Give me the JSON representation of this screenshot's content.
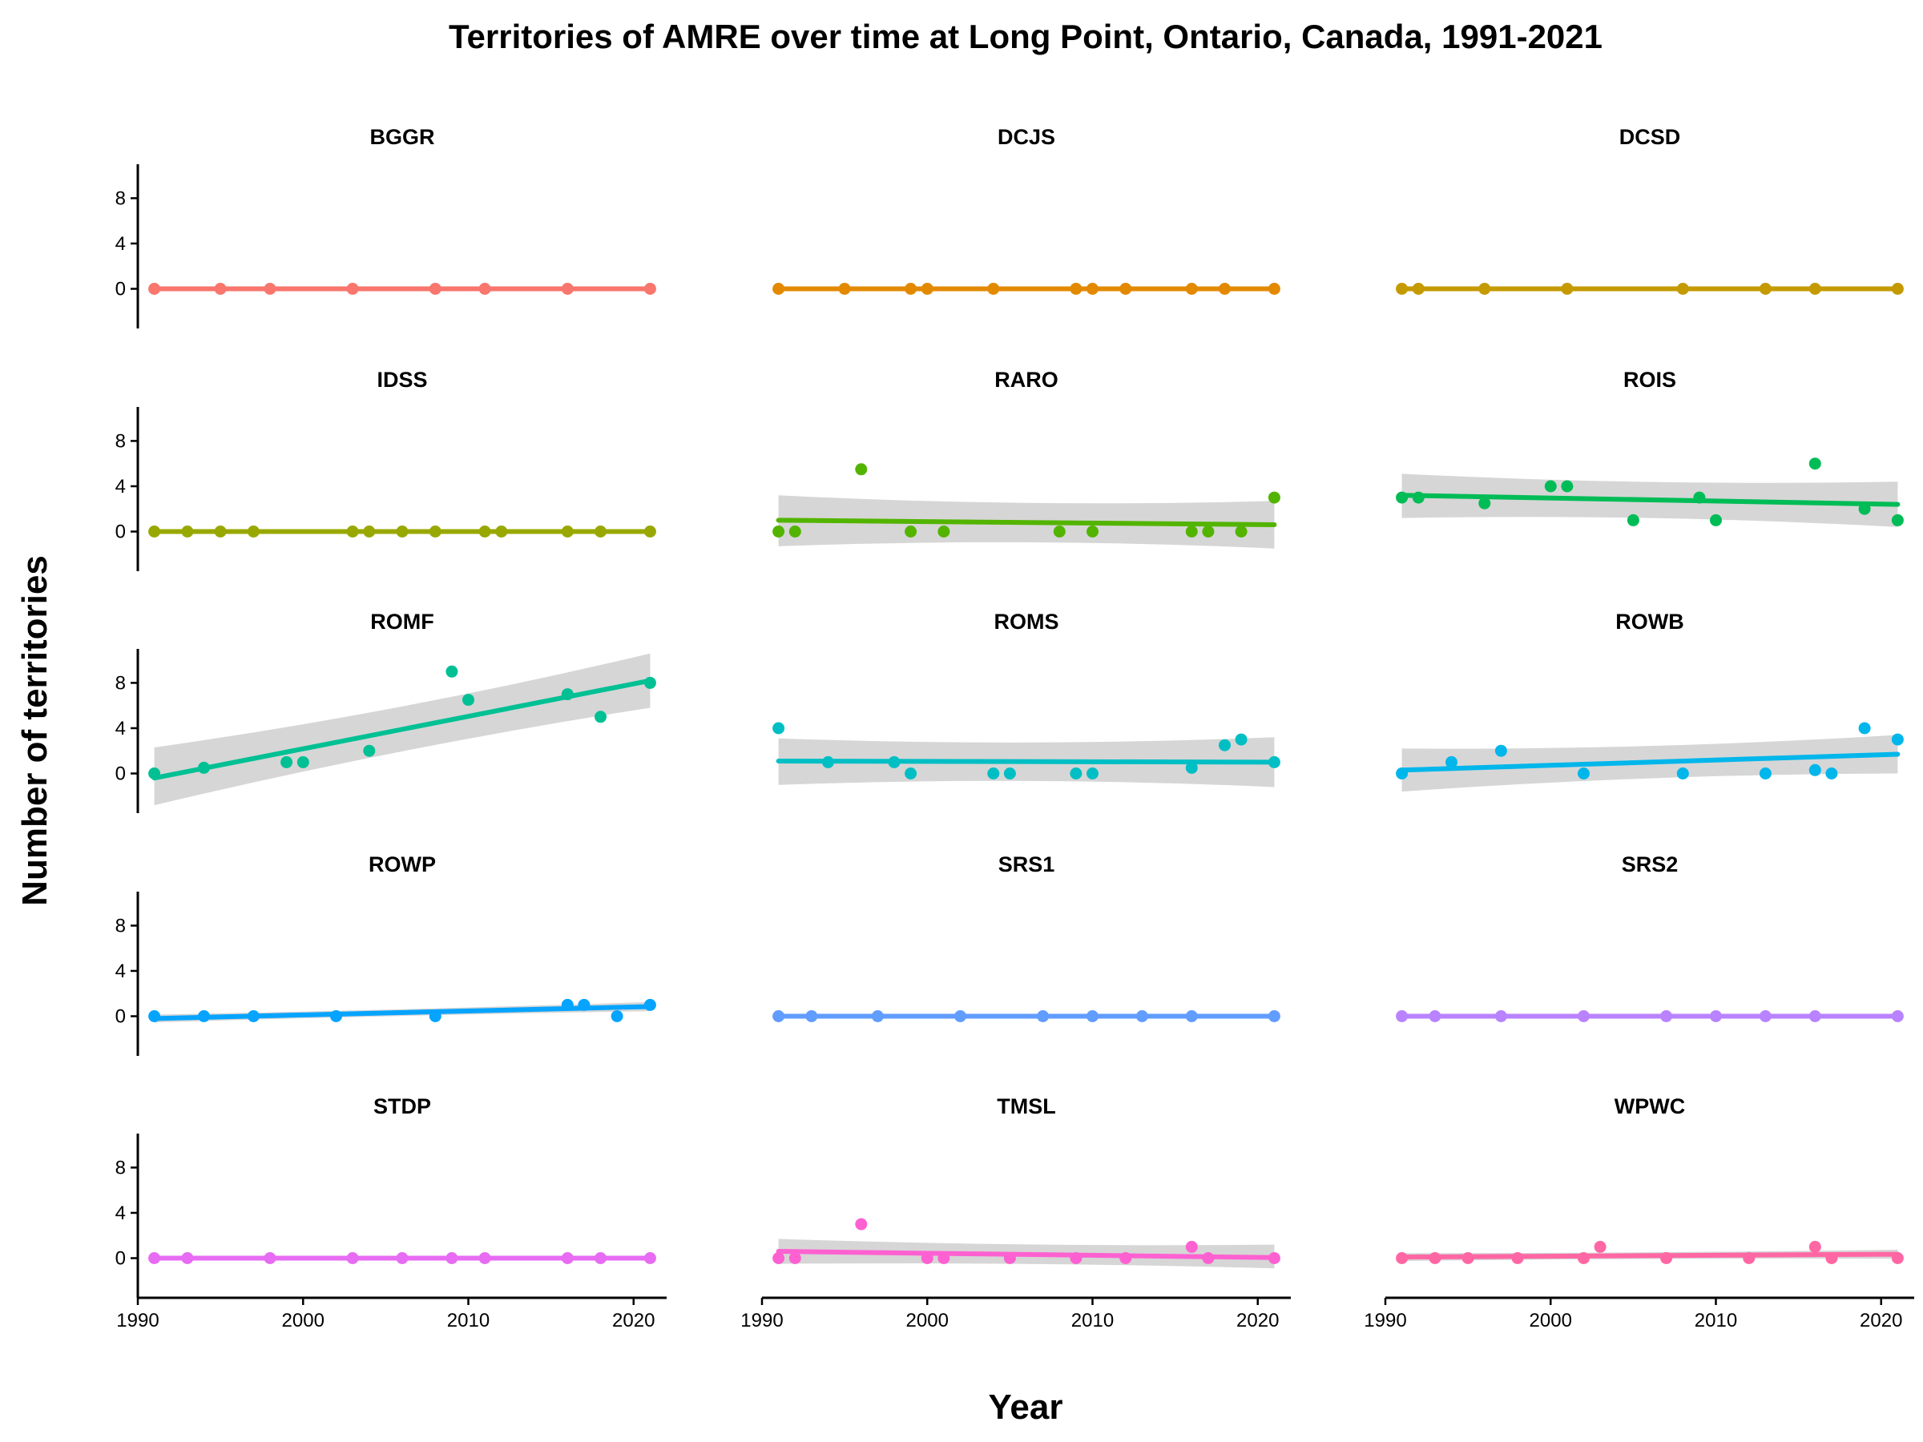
{
  "chart_data": {
    "type": "scatter",
    "title": "Territories of AMRE over time at Long Point, Ontario, Canada, 1991-2021",
    "xlabel": "Year",
    "ylabel": "Number of territories",
    "xlim": [
      1990,
      2022
    ],
    "ylim": [
      -3.5,
      11
    ],
    "x_ticks": [
      1990,
      2000,
      2010,
      2020
    ],
    "y_ticks": [
      0,
      4,
      8
    ],
    "grid": false,
    "legend": "none",
    "smoothing": "linear fit with 95% confidence band",
    "panels": [
      {
        "name": "BGGR",
        "color": "#F8766D",
        "x": [
          1991,
          1995,
          1998,
          2003,
          2008,
          2011,
          2016,
          2021
        ],
        "y": [
          0,
          0,
          0,
          0,
          0,
          0,
          0,
          0
        ],
        "fit": [
          0,
          0
        ],
        "band": [
          [
            0,
            0
          ],
          [
            0,
            0
          ]
        ]
      },
      {
        "name": "DCJS",
        "color": "#E38900",
        "x": [
          1991,
          1995,
          1999,
          2000,
          2004,
          2009,
          2010,
          2012,
          2016,
          2018,
          2021
        ],
        "y": [
          0,
          0,
          0,
          0,
          0,
          0,
          0,
          0,
          0,
          0,
          0
        ],
        "fit": [
          0,
          0
        ],
        "band": [
          [
            0,
            0
          ],
          [
            0,
            0
          ]
        ]
      },
      {
        "name": "DCSD",
        "color": "#C49A00",
        "x": [
          1991,
          1992,
          1996,
          2001,
          2008,
          2013,
          2016,
          2021
        ],
        "y": [
          0,
          0,
          0,
          0,
          0,
          0,
          0,
          0
        ],
        "fit": [
          0,
          0
        ],
        "band": [
          [
            0,
            0
          ],
          [
            0,
            0
          ]
        ]
      },
      {
        "name": "IDSS",
        "color": "#99A800",
        "x": [
          1991,
          1993,
          1995,
          1997,
          2003,
          2004,
          2006,
          2008,
          2011,
          2012,
          2016,
          2018,
          2021
        ],
        "y": [
          0,
          0,
          0,
          0,
          0,
          0,
          0,
          0,
          0,
          0,
          0,
          0,
          0
        ],
        "fit": [
          0,
          0
        ],
        "band": [
          [
            0,
            0
          ],
          [
            0,
            0
          ]
        ]
      },
      {
        "name": "RARO",
        "color": "#53B400",
        "x": [
          1991,
          1992,
          1996,
          1999,
          2001,
          2008,
          2010,
          2016,
          2017,
          2019,
          2021
        ],
        "y": [
          0,
          0,
          5.5,
          0,
          0,
          0,
          0,
          0,
          0,
          0,
          3
        ],
        "fit": [
          1.0,
          0.6
        ],
        "band": [
          [
            -1.3,
            3.2
          ],
          [
            -1.5,
            2.7
          ]
        ]
      },
      {
        "name": "ROIS",
        "color": "#00BC56",
        "x": [
          1991,
          1992,
          1996,
          2000,
          2001,
          2005,
          2009,
          2010,
          2016,
          2019,
          2021
        ],
        "y": [
          3,
          3,
          2.5,
          4,
          4,
          1,
          3,
          1,
          6,
          2,
          1
        ],
        "fit": [
          3.2,
          2.4
        ],
        "band": [
          [
            1.2,
            5.1
          ],
          [
            0.4,
            4.4
          ]
        ]
      },
      {
        "name": "ROMF",
        "color": "#00C094",
        "x": [
          1991,
          1994,
          1999,
          2000,
          2004,
          2009,
          2010,
          2016,
          2018,
          2021
        ],
        "y": [
          0,
          0.5,
          1,
          1,
          2,
          9,
          6.5,
          7,
          5,
          8
        ],
        "fit": [
          -0.4,
          8.2
        ],
        "band": [
          [
            -2.8,
            2.3
          ],
          [
            5.8,
            10.6
          ]
        ]
      },
      {
        "name": "ROMS",
        "color": "#00BFC4",
        "x": [
          1991,
          1994,
          1998,
          1999,
          2004,
          2005,
          2009,
          2010,
          2016,
          2018,
          2019,
          2021
        ],
        "y": [
          4,
          1,
          1,
          0,
          0,
          0,
          0,
          0,
          0.5,
          2.5,
          3,
          1
        ],
        "fit": [
          1.1,
          1.0
        ],
        "band": [
          [
            -1.0,
            3.1
          ],
          [
            -1.2,
            3.2
          ]
        ]
      },
      {
        "name": "ROWB",
        "color": "#00B6EB",
        "x": [
          1991,
          1994,
          1997,
          2002,
          2008,
          2013,
          2016,
          2017,
          2019,
          2021
        ],
        "y": [
          0,
          1,
          2,
          0,
          0,
          0,
          0.3,
          0,
          4,
          3
        ],
        "fit": [
          0.3,
          1.7
        ],
        "band": [
          [
            -1.6,
            2.2
          ],
          [
            0.0,
            3.4
          ]
        ]
      },
      {
        "name": "ROWP",
        "color": "#06A4FF",
        "x": [
          1991,
          1994,
          1997,
          2002,
          2008,
          2016,
          2017,
          2019,
          2021
        ],
        "y": [
          0,
          0,
          0,
          0,
          0,
          1,
          1,
          0,
          1
        ],
        "fit": [
          -0.2,
          0.85
        ],
        "band": [
          [
            -0.55,
            0.15
          ],
          [
            0.45,
            1.25
          ]
        ]
      },
      {
        "name": "SRS1",
        "color": "#619CFF",
        "x": [
          1991,
          1993,
          1997,
          2002,
          2007,
          2010,
          2013,
          2016,
          2021
        ],
        "y": [
          0,
          0,
          0,
          0,
          0,
          0,
          0,
          0,
          0
        ],
        "fit": [
          0,
          0
        ],
        "band": [
          [
            0,
            0
          ],
          [
            0,
            0
          ]
        ]
      },
      {
        "name": "SRS2",
        "color": "#B983FF",
        "x": [
          1991,
          1993,
          1997,
          2002,
          2007,
          2010,
          2013,
          2016,
          2021
        ],
        "y": [
          0,
          0,
          0,
          0,
          0,
          0,
          0,
          0,
          0
        ],
        "fit": [
          0,
          0
        ],
        "band": [
          [
            0,
            0
          ],
          [
            0,
            0
          ]
        ]
      },
      {
        "name": "STDP",
        "color": "#E76BF3",
        "x": [
          1991,
          1993,
          1998,
          2003,
          2006,
          2009,
          2011,
          2016,
          2018,
          2021
        ],
        "y": [
          0,
          0,
          0,
          0,
          0,
          0,
          0,
          0,
          0,
          0
        ],
        "fit": [
          0,
          0
        ],
        "band": [
          [
            0,
            0
          ],
          [
            0,
            0
          ]
        ]
      },
      {
        "name": "TMSL",
        "color": "#FD61D1",
        "x": [
          1991,
          1992,
          1996,
          2000,
          2001,
          2005,
          2009,
          2012,
          2016,
          2017,
          2021
        ],
        "y": [
          0,
          0,
          3,
          0,
          0,
          0,
          0,
          0,
          1,
          0,
          0
        ],
        "fit": [
          0.6,
          0.05
        ],
        "band": [
          [
            -0.5,
            1.7
          ],
          [
            -0.9,
            1.2
          ]
        ]
      },
      {
        "name": "WPWC",
        "color": "#FF67A4",
        "x": [
          1991,
          1993,
          1995,
          1998,
          2002,
          2003,
          2007,
          2012,
          2016,
          2017,
          2021
        ],
        "y": [
          0,
          0,
          0,
          0,
          0,
          1,
          0,
          0,
          1,
          0,
          0
        ],
        "fit": [
          0.1,
          0.35
        ],
        "band": [
          [
            -0.25,
            0.45
          ],
          [
            -0.05,
            0.75
          ]
        ]
      }
    ]
  }
}
